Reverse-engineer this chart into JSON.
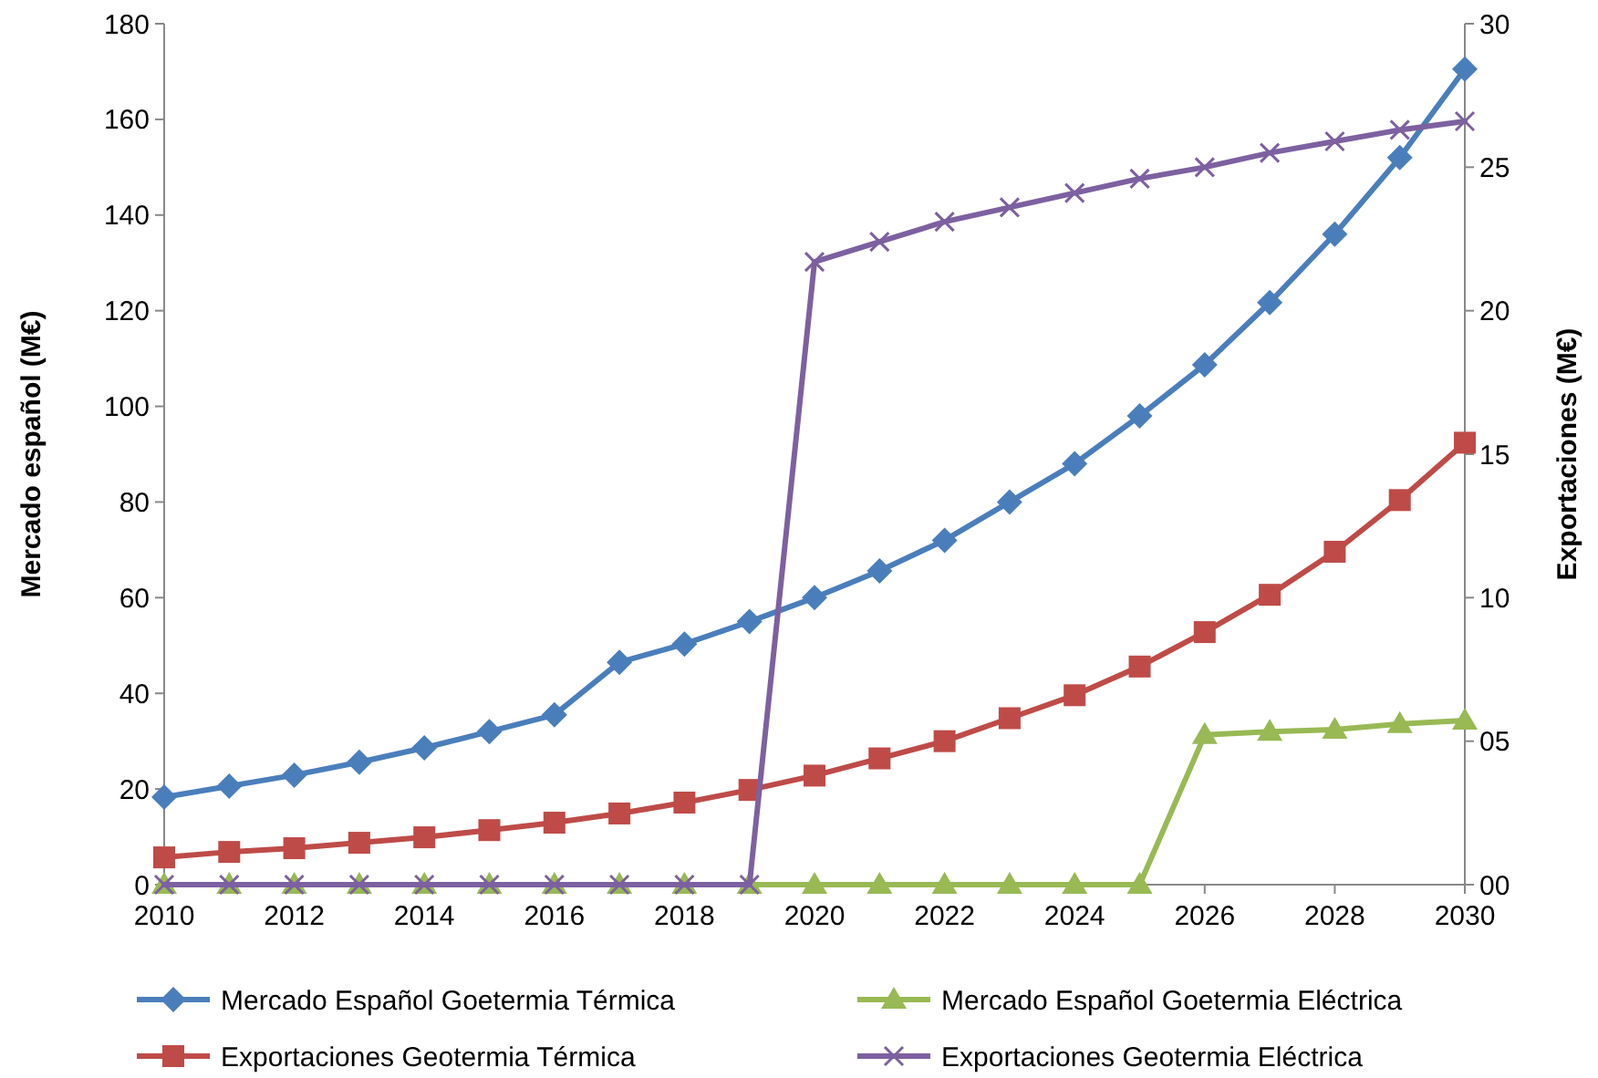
{
  "chart_data": {
    "type": "line",
    "ylabel": "Mercado español (M€)",
    "y2label": "Exportaciones (M€)",
    "x": [
      2010,
      2011,
      2012,
      2013,
      2014,
      2015,
      2016,
      2017,
      2018,
      2019,
      2020,
      2021,
      2022,
      2023,
      2024,
      2025,
      2026,
      2027,
      2028,
      2029,
      2030
    ],
    "xlim": [
      2010,
      2030
    ],
    "xticks": [
      2010,
      2012,
      2014,
      2016,
      2018,
      2020,
      2022,
      2024,
      2026,
      2028,
      2030
    ],
    "ylim": [
      0,
      180
    ],
    "yticks": [
      0,
      20,
      40,
      60,
      80,
      100,
      120,
      140,
      160,
      180
    ],
    "y2lim": [
      0,
      30
    ],
    "y2ticks": [
      {
        "value": 0,
        "label": "00"
      },
      {
        "value": 5,
        "label": "05"
      },
      {
        "value": 10,
        "label": "10"
      },
      {
        "value": 15,
        "label": "15"
      },
      {
        "value": 20,
        "label": "20"
      },
      {
        "value": 25,
        "label": "25"
      },
      {
        "value": 30,
        "label": "30"
      }
    ],
    "grid": false,
    "legend": "bottom",
    "line_style": "solid",
    "series": [
      {
        "name": "Mercado Español Goetermia Térmica",
        "color": "#4a7ebb",
        "marker": "diamond",
        "values": [
          18.3,
          20.6,
          22.9,
          25.6,
          28.6,
          32,
          35.5,
          46.5,
          50.3,
          55,
          60,
          65.6,
          72,
          80,
          88,
          98,
          108.7,
          121.7,
          136,
          152,
          170.5
        ]
      },
      {
        "name": "Mercado Español Goetermia Eléctrica",
        "color": "#98b954",
        "marker": "triangle",
        "values": [
          0,
          0,
          0,
          0,
          0,
          0,
          0,
          0,
          0,
          0,
          0,
          0,
          0,
          0,
          0,
          0,
          31.3,
          32,
          32.4,
          33.6,
          34.3
        ]
      },
      {
        "name": "Exportaciones Geotermia Térmica",
        "color": "#be4b48",
        "marker": "square",
        "axis": "y2",
        "values": [
          0.95,
          1.14,
          1.27,
          1.46,
          1.65,
          1.9,
          2.16,
          2.48,
          2.86,
          3.3,
          3.8,
          4.4,
          5,
          5.8,
          6.6,
          7.6,
          8.8,
          10.1,
          11.6,
          13.4,
          15.4
        ]
      },
      {
        "name": "Exportaciones Geotermia Eléctrica",
        "color": "#7d60a0",
        "marker": "cross",
        "axis": "y2",
        "values": [
          0,
          0,
          0,
          0,
          0,
          0,
          0,
          0,
          0,
          0,
          21.7,
          22.4,
          23.1,
          23.6,
          24.1,
          24.6,
          25,
          25.5,
          25.9,
          26.3,
          26.6
        ]
      }
    ]
  }
}
